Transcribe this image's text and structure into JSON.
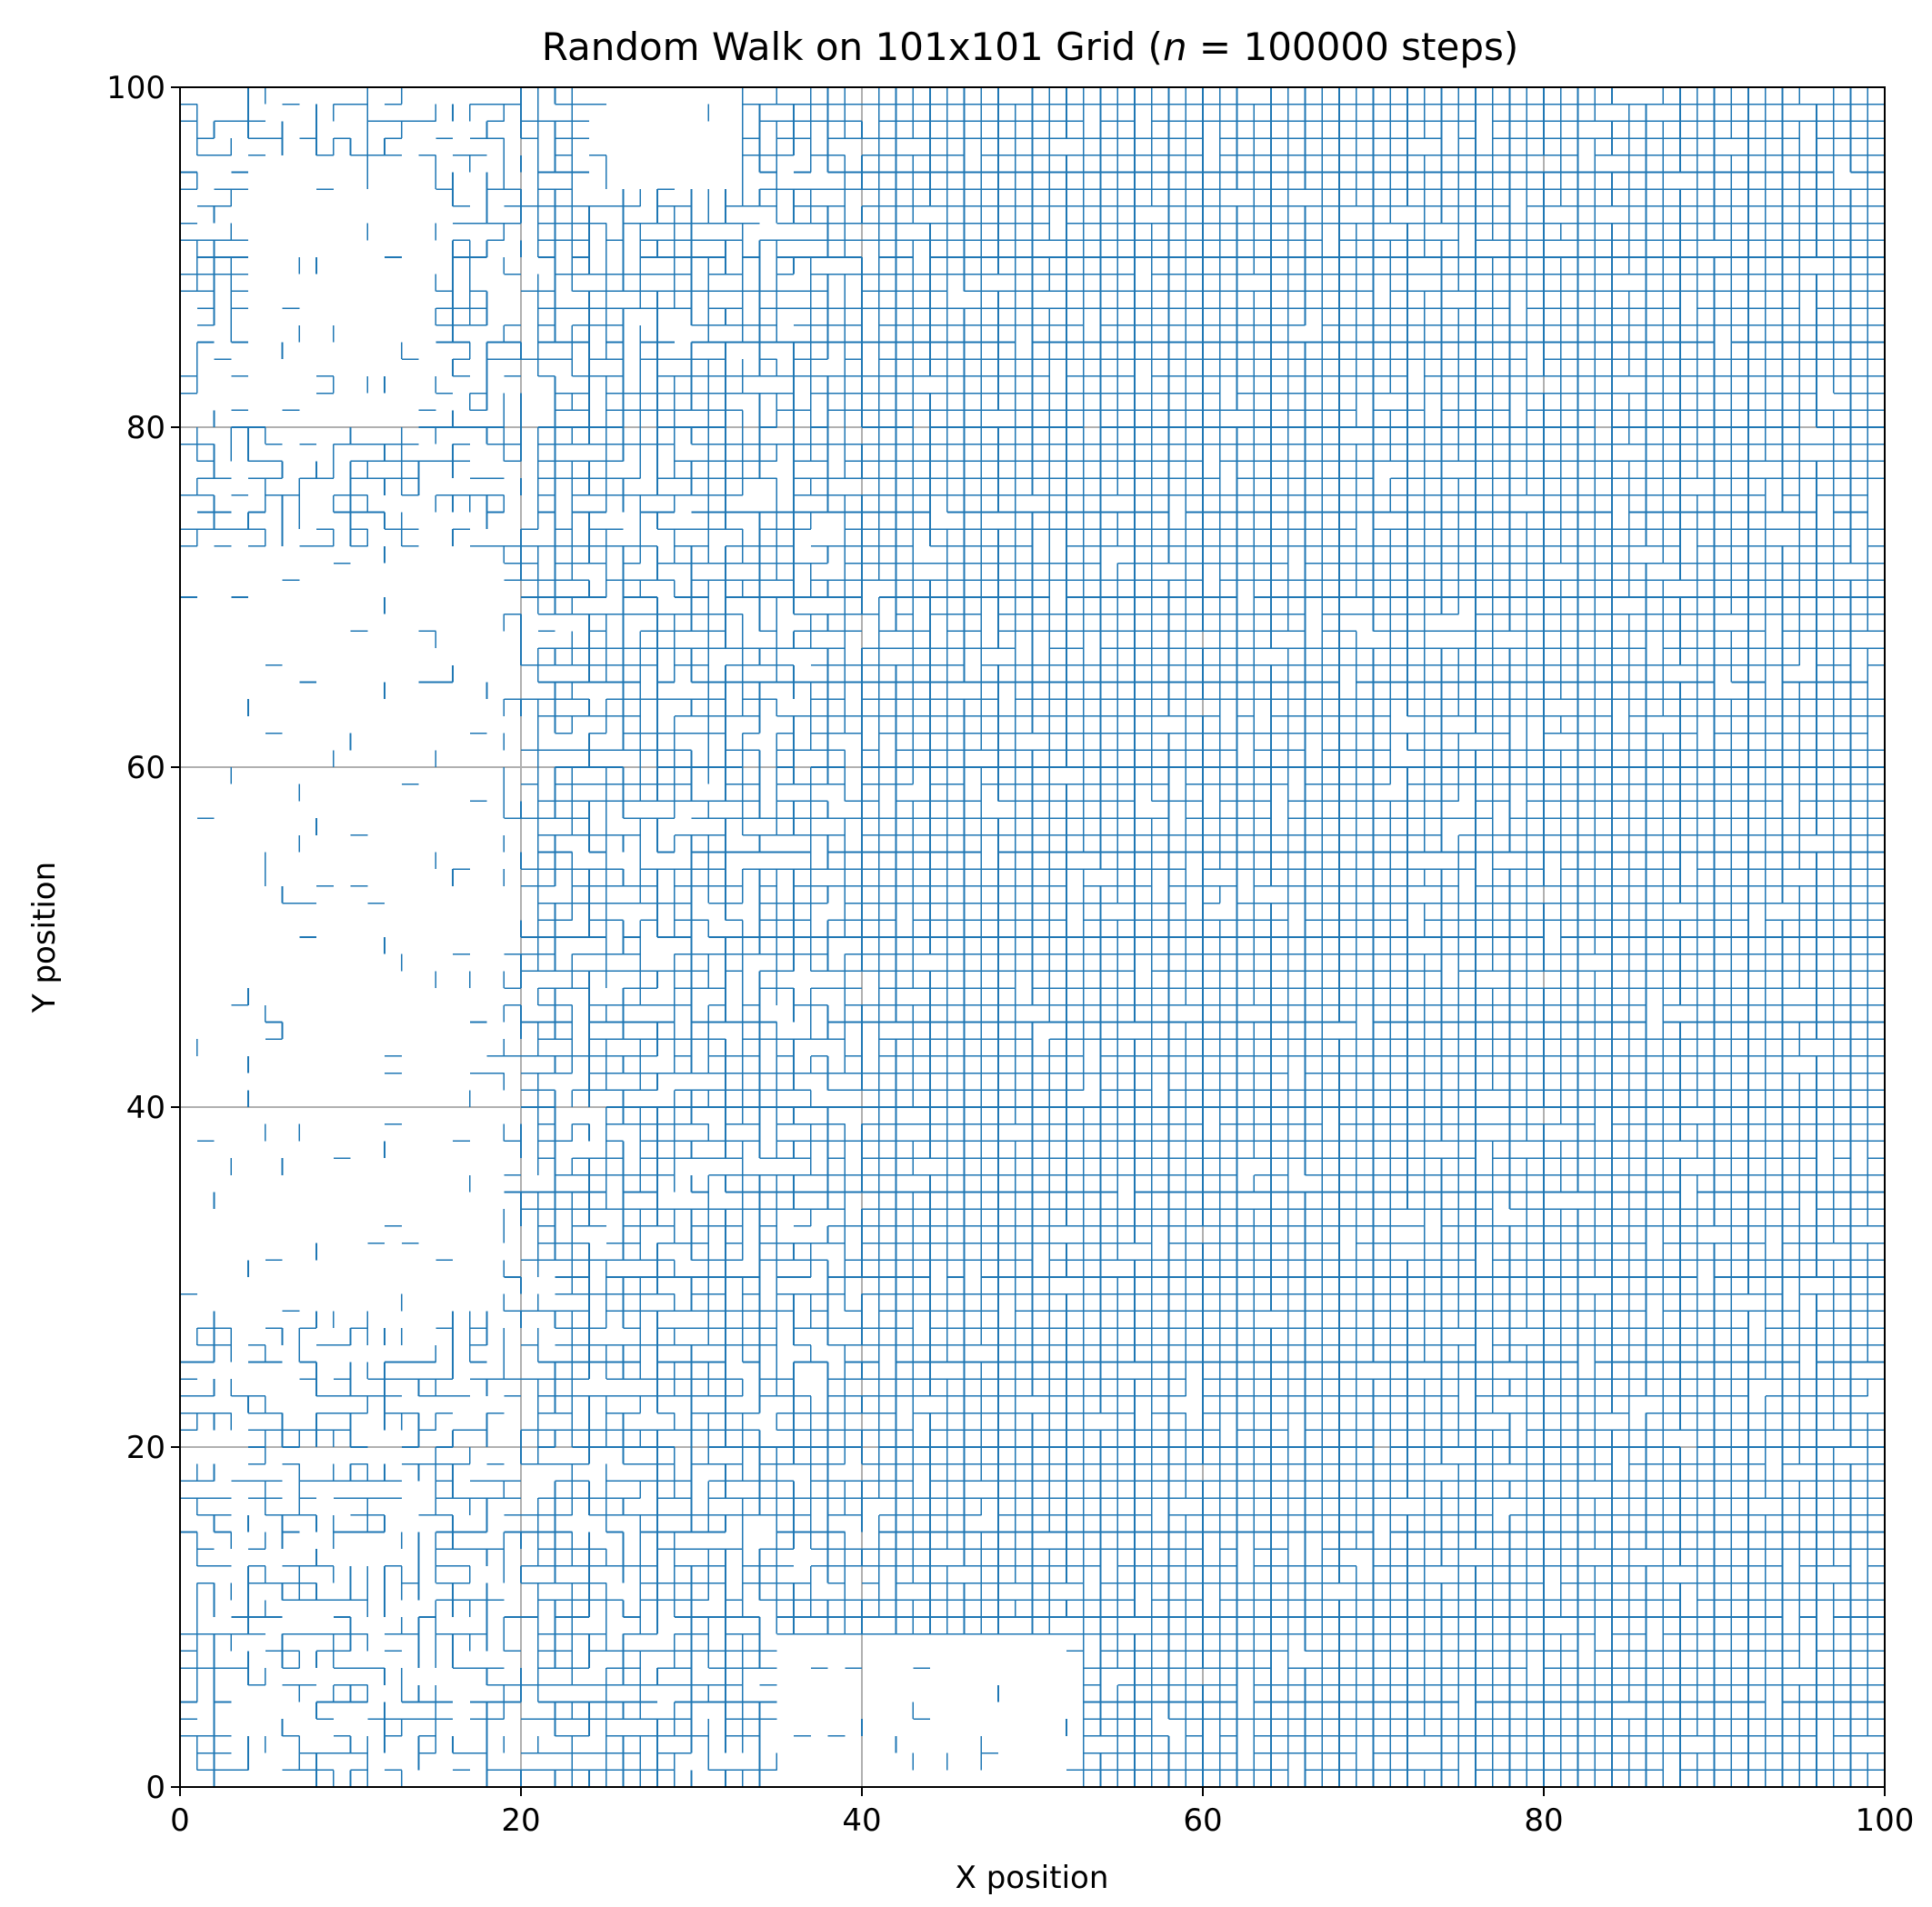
{
  "chart_data": {
    "type": "line",
    "title": {
      "prefix": "Random Walk on 101x101 Grid (",
      "variable": "n",
      "equals": " = ",
      "steps": "100000",
      "suffix": " steps)"
    },
    "xlabel": "X position",
    "ylabel": "Y position",
    "xlim": [
      0,
      100
    ],
    "ylim": [
      0,
      100
    ],
    "xticks": [
      0,
      20,
      40,
      60,
      80,
      100
    ],
    "yticks": [
      0,
      20,
      40,
      60,
      80,
      100
    ],
    "xtick_labels": [
      "0",
      "20",
      "40",
      "60",
      "80",
      "100"
    ],
    "ytick_labels": [
      "0",
      "20",
      "40",
      "60",
      "80",
      "100"
    ],
    "grid": true,
    "grid_size": 101,
    "n_steps": 100000,
    "series": [
      {
        "name": "walk",
        "color": "#1f77b4",
        "description": "lattice random walk, dense coverage on the right side, sparse on the left",
        "coverage_by_column_band": [
          {
            "x_range": [
              0,
              20
            ],
            "density": 0.45
          },
          {
            "x_range": [
              20,
              40
            ],
            "density": 0.78
          },
          {
            "x_range": [
              40,
              100
            ],
            "density": 0.96
          }
        ],
        "unvisited_regions": [
          {
            "x": [
              0,
              18
            ],
            "y": [
              28,
              72
            ]
          },
          {
            "x": [
              0,
              12
            ],
            "y": [
              62,
              70
            ]
          },
          {
            "x": [
              35,
              52
            ],
            "y": [
              0,
              8
            ]
          },
          {
            "x": [
              4,
              14
            ],
            "y": [
              80,
              95
            ]
          },
          {
            "x": [
              24,
              32
            ],
            "y": [
              94,
              100
            ]
          }
        ]
      }
    ],
    "colors": {
      "walk": "#1f77b4",
      "grid": "#b0b0b0",
      "axes": "#000000"
    }
  }
}
